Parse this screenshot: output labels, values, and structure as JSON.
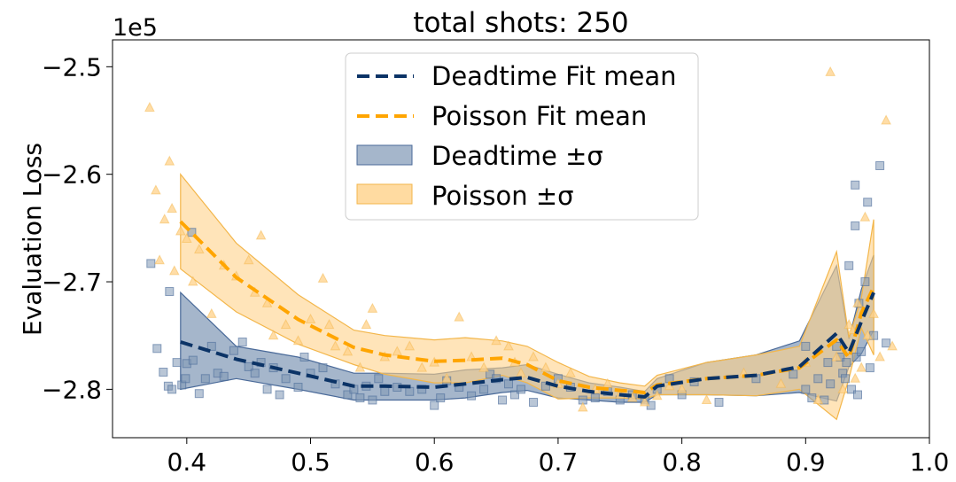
{
  "chart_data": {
    "type": "line",
    "title": "total shots: 250",
    "xlabel": "",
    "ylabel": "Evaluation Loss",
    "y_scale_label": "1e5",
    "xlim": [
      0.34,
      1.0
    ],
    "ylim": [
      -2.845,
      -2.475
    ],
    "x_ticks": [
      0.4,
      0.5,
      0.6,
      0.7,
      0.8,
      0.9,
      1.0
    ],
    "x_tick_labels": [
      "0.4",
      "0.5",
      "0.6",
      "0.7",
      "0.8",
      "0.9",
      "1.0"
    ],
    "y_ticks": [
      -2.5,
      -2.6,
      -2.7,
      -2.8
    ],
    "y_tick_labels": [
      "−2.5",
      "−2.6",
      "−2.7",
      "−2.8"
    ],
    "legend_position": "top-center",
    "colors": {
      "deadtime": "#0b3366",
      "deadtime_band": "#7f97b5",
      "deadtime_band_edge": "#4a6a99",
      "poisson": "#ffa500",
      "poisson_band": "#ffd28a",
      "poisson_band_edge": "#f3b64a"
    },
    "series": [
      {
        "name": "Deadtime Fit mean",
        "style": "dashed",
        "x": [
          0.395,
          0.44,
          0.49,
          0.535,
          0.56,
          0.6,
          0.625,
          0.655,
          0.675,
          0.7,
          0.725,
          0.75,
          0.77,
          0.78,
          0.82,
          0.86,
          0.895,
          0.925,
          0.935,
          0.945,
          0.955
        ],
        "y": [
          -2.756,
          -2.772,
          -2.785,
          -2.797,
          -2.797,
          -2.798,
          -2.795,
          -2.791,
          -2.789,
          -2.797,
          -2.802,
          -2.805,
          -2.807,
          -2.797,
          -2.79,
          -2.787,
          -2.779,
          -2.748,
          -2.766,
          -2.737,
          -2.71
        ]
      },
      {
        "name": "Poisson Fit mean",
        "style": "dashed",
        "x": [
          0.395,
          0.44,
          0.49,
          0.535,
          0.56,
          0.6,
          0.625,
          0.655,
          0.675,
          0.7,
          0.725,
          0.75,
          0.77,
          0.78,
          0.82,
          0.86,
          0.895,
          0.925,
          0.935,
          0.945,
          0.955
        ],
        "y": [
          -2.644,
          -2.696,
          -2.735,
          -2.761,
          -2.768,
          -2.774,
          -2.773,
          -2.771,
          -2.777,
          -2.792,
          -2.798,
          -2.801,
          -2.803,
          -2.796,
          -2.79,
          -2.787,
          -2.78,
          -2.754,
          -2.771,
          -2.729,
          -2.705
        ]
      },
      {
        "name": "Deadtime ±σ",
        "band_of": "Deadtime Fit mean",
        "x": [
          0.395,
          0.44,
          0.49,
          0.535,
          0.56,
          0.6,
          0.625,
          0.655,
          0.675,
          0.7,
          0.725,
          0.75,
          0.77,
          0.78,
          0.82,
          0.86,
          0.895,
          0.925,
          0.935,
          0.945,
          0.955
        ],
        "upper": [
          -2.71,
          -2.76,
          -2.77,
          -2.785,
          -2.785,
          -2.786,
          -2.782,
          -2.78,
          -2.777,
          -2.786,
          -2.794,
          -2.798,
          -2.802,
          -2.79,
          -2.775,
          -2.768,
          -2.755,
          -2.685,
          -2.753,
          -2.707,
          -2.675
        ],
        "lower": [
          -2.8,
          -2.79,
          -2.8,
          -2.81,
          -2.81,
          -2.81,
          -2.808,
          -2.803,
          -2.801,
          -2.808,
          -2.81,
          -2.812,
          -2.812,
          -2.805,
          -2.805,
          -2.806,
          -2.803,
          -2.811,
          -2.779,
          -2.767,
          -2.745
        ]
      },
      {
        "name": "Poisson ±σ",
        "band_of": "Poisson Fit mean",
        "x": [
          0.395,
          0.44,
          0.49,
          0.535,
          0.56,
          0.6,
          0.625,
          0.655,
          0.675,
          0.7,
          0.725,
          0.75,
          0.77,
          0.78,
          0.82,
          0.86,
          0.895,
          0.925,
          0.935,
          0.945,
          0.955
        ],
        "upper": [
          -2.6,
          -2.664,
          -2.712,
          -2.745,
          -2.75,
          -2.754,
          -2.752,
          -2.755,
          -2.76,
          -2.775,
          -2.788,
          -2.794,
          -2.797,
          -2.787,
          -2.775,
          -2.768,
          -2.76,
          -2.672,
          -2.752,
          -2.715,
          -2.642
        ],
        "lower": [
          -2.688,
          -2.728,
          -2.758,
          -2.777,
          -2.786,
          -2.794,
          -2.794,
          -2.787,
          -2.794,
          -2.809,
          -2.808,
          -2.808,
          -2.809,
          -2.805,
          -2.805,
          -2.806,
          -2.8,
          -2.828,
          -2.79,
          -2.743,
          -2.768
        ]
      },
      {
        "name": "Deadtime samples",
        "marker": "square",
        "points": [
          [
            0.371,
            -2.683
          ],
          [
            0.376,
            -2.762
          ],
          [
            0.381,
            -2.784
          ],
          [
            0.385,
            -2.797
          ],
          [
            0.386,
            -2.709
          ],
          [
            0.388,
            -2.8
          ],
          [
            0.392,
            -2.775
          ],
          [
            0.396,
            -2.796
          ],
          [
            0.399,
            -2.79
          ],
          [
            0.4,
            -2.776
          ],
          [
            0.404,
            -2.654
          ],
          [
            0.405,
            -2.773
          ],
          [
            0.41,
            -2.804
          ],
          [
            0.415,
            -2.79
          ],
          [
            0.42,
            -2.76
          ],
          [
            0.425,
            -2.785
          ],
          [
            0.43,
            -2.788
          ],
          [
            0.438,
            -2.764
          ],
          [
            0.445,
            -2.756
          ],
          [
            0.45,
            -2.779
          ],
          [
            0.455,
            -2.785
          ],
          [
            0.46,
            -2.775
          ],
          [
            0.465,
            -2.8
          ],
          [
            0.47,
            -2.78
          ],
          [
            0.475,
            -2.805
          ],
          [
            0.48,
            -2.79
          ],
          [
            0.49,
            -2.798
          ],
          [
            0.495,
            -2.77
          ],
          [
            0.5,
            -2.785
          ],
          [
            0.51,
            -2.78
          ],
          [
            0.52,
            -2.795
          ],
          [
            0.53,
            -2.805
          ],
          [
            0.535,
            -2.8
          ],
          [
            0.54,
            -2.808
          ],
          [
            0.545,
            -2.797
          ],
          [
            0.55,
            -2.81
          ],
          [
            0.555,
            -2.79
          ],
          [
            0.56,
            -2.802
          ],
          [
            0.57,
            -2.798
          ],
          [
            0.58,
            -2.802
          ],
          [
            0.59,
            -2.8
          ],
          [
            0.6,
            -2.815
          ],
          [
            0.605,
            -2.808
          ],
          [
            0.61,
            -2.792
          ],
          [
            0.62,
            -2.798
          ],
          [
            0.63,
            -2.806
          ],
          [
            0.64,
            -2.8
          ],
          [
            0.645,
            -2.786
          ],
          [
            0.65,
            -2.79
          ],
          [
            0.655,
            -2.81
          ],
          [
            0.66,
            -2.795
          ],
          [
            0.665,
            -2.805
          ],
          [
            0.67,
            -2.8
          ],
          [
            0.68,
            -2.812
          ],
          [
            0.69,
            -2.797
          ],
          [
            0.7,
            -2.79
          ],
          [
            0.71,
            -2.798
          ],
          [
            0.72,
            -2.81
          ],
          [
            0.73,
            -2.808
          ],
          [
            0.74,
            -2.802
          ],
          [
            0.75,
            -2.81
          ],
          [
            0.76,
            -2.805
          ],
          [
            0.77,
            -2.81
          ],
          [
            0.775,
            -2.815
          ],
          [
            0.78,
            -2.8
          ],
          [
            0.79,
            -2.79
          ],
          [
            0.8,
            -2.805
          ],
          [
            0.81,
            -2.793
          ],
          [
            0.83,
            -2.812
          ],
          [
            0.86,
            -2.79
          ],
          [
            0.89,
            -2.786
          ],
          [
            0.9,
            -2.8
          ],
          [
            0.9,
            -2.76
          ],
          [
            0.905,
            -2.808
          ],
          [
            0.91,
            -2.79
          ],
          [
            0.915,
            -2.81
          ],
          [
            0.918,
            -2.775
          ],
          [
            0.92,
            -2.795
          ],
          [
            0.925,
            -2.76
          ],
          [
            0.928,
            -2.77
          ],
          [
            0.93,
            -2.785
          ],
          [
            0.932,
            -2.79
          ],
          [
            0.933,
            -2.775
          ],
          [
            0.935,
            -2.685
          ],
          [
            0.937,
            -2.8
          ],
          [
            0.94,
            -2.61
          ],
          [
            0.94,
            -2.648
          ],
          [
            0.941,
            -2.77
          ],
          [
            0.942,
            -2.805
          ],
          [
            0.943,
            -2.72
          ],
          [
            0.945,
            -2.765
          ],
          [
            0.948,
            -2.7
          ],
          [
            0.95,
            -2.626
          ],
          [
            0.952,
            -2.78
          ],
          [
            0.955,
            -2.75
          ],
          [
            0.96,
            -2.592
          ],
          [
            0.965,
            -2.757
          ]
        ]
      },
      {
        "name": "Poisson samples",
        "marker": "triangle",
        "points": [
          [
            0.37,
            -2.538
          ],
          [
            0.375,
            -2.615
          ],
          [
            0.378,
            -2.68
          ],
          [
            0.382,
            -2.642
          ],
          [
            0.386,
            -2.588
          ],
          [
            0.388,
            -2.632
          ],
          [
            0.39,
            -2.69
          ],
          [
            0.395,
            -2.653
          ],
          [
            0.4,
            -2.66
          ],
          [
            0.405,
            -2.7
          ],
          [
            0.41,
            -2.67
          ],
          [
            0.42,
            -2.73
          ],
          [
            0.43,
            -2.685
          ],
          [
            0.44,
            -2.695
          ],
          [
            0.45,
            -2.68
          ],
          [
            0.455,
            -2.71
          ],
          [
            0.46,
            -2.657
          ],
          [
            0.465,
            -2.72
          ],
          [
            0.47,
            -2.75
          ],
          [
            0.48,
            -2.74
          ],
          [
            0.49,
            -2.755
          ],
          [
            0.5,
            -2.735
          ],
          [
            0.51,
            -2.697
          ],
          [
            0.515,
            -2.74
          ],
          [
            0.52,
            -2.76
          ],
          [
            0.53,
            -2.765
          ],
          [
            0.54,
            -2.78
          ],
          [
            0.545,
            -2.74
          ],
          [
            0.55,
            -2.725
          ],
          [
            0.56,
            -2.77
          ],
          [
            0.57,
            -2.765
          ],
          [
            0.58,
            -2.76
          ],
          [
            0.59,
            -2.78
          ],
          [
            0.6,
            -2.775
          ],
          [
            0.61,
            -2.79
          ],
          [
            0.62,
            -2.733
          ],
          [
            0.63,
            -2.77
          ],
          [
            0.64,
            -2.78
          ],
          [
            0.65,
            -2.755
          ],
          [
            0.66,
            -2.76
          ],
          [
            0.665,
            -2.775
          ],
          [
            0.67,
            -2.785
          ],
          [
            0.68,
            -2.77
          ],
          [
            0.69,
            -2.78
          ],
          [
            0.7,
            -2.795
          ],
          [
            0.71,
            -2.785
          ],
          [
            0.72,
            -2.817
          ],
          [
            0.73,
            -2.8
          ],
          [
            0.74,
            -2.795
          ],
          [
            0.75,
            -2.805
          ],
          [
            0.76,
            -2.808
          ],
          [
            0.77,
            -2.812
          ],
          [
            0.78,
            -2.806
          ],
          [
            0.79,
            -2.797
          ],
          [
            0.8,
            -2.8
          ],
          [
            0.82,
            -2.81
          ],
          [
            0.85,
            -2.785
          ],
          [
            0.88,
            -2.795
          ],
          [
            0.9,
            -2.775
          ],
          [
            0.91,
            -2.81
          ],
          [
            0.92,
            -2.505
          ],
          [
            0.925,
            -2.77
          ],
          [
            0.93,
            -2.8
          ],
          [
            0.935,
            -2.74
          ],
          [
            0.938,
            -2.745
          ],
          [
            0.94,
            -2.79
          ],
          [
            0.942,
            -2.72
          ],
          [
            0.945,
            -2.78
          ],
          [
            0.948,
            -2.64
          ],
          [
            0.95,
            -2.75
          ],
          [
            0.955,
            -2.73
          ],
          [
            0.96,
            -2.77
          ],
          [
            0.965,
            -2.55
          ],
          [
            0.97,
            -2.76
          ]
        ]
      }
    ]
  }
}
